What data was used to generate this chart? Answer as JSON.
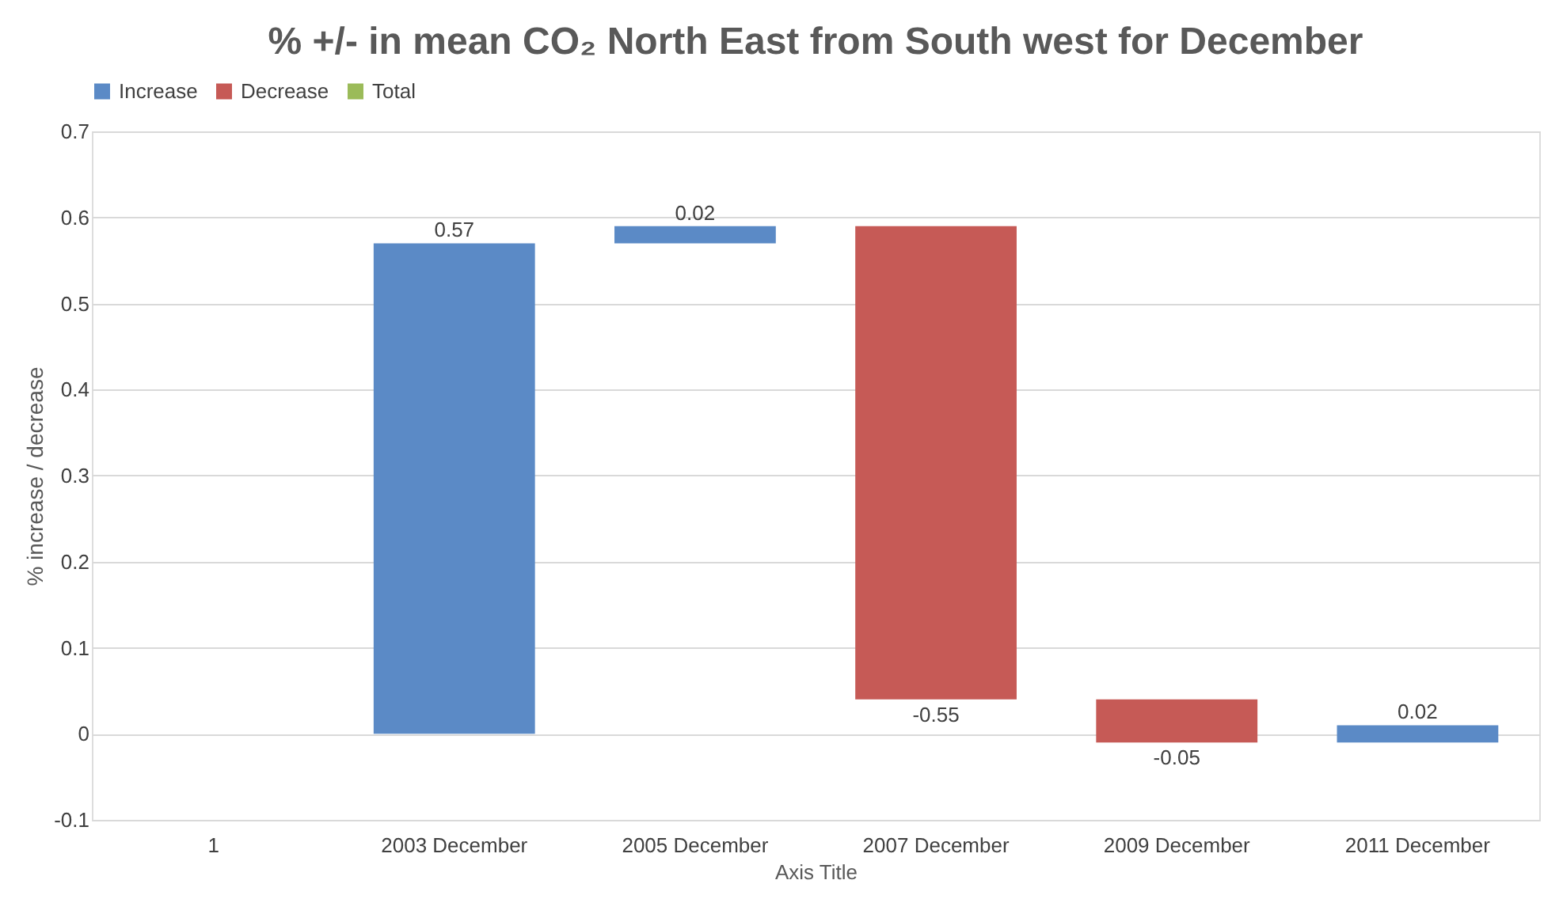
{
  "chart_data": {
    "type": "bar",
    "title": "% +/- in mean CO₂ North East from South west for December",
    "categories": [
      "1",
      "2003  December",
      "2005  December",
      "2007  December",
      "2009  December",
      "2011 December"
    ],
    "series": [
      {
        "name": "Increase",
        "color": "#5b8ac6",
        "values": [
          null,
          0.57,
          0.02,
          null,
          null,
          0.02
        ],
        "base": [
          null,
          0,
          0.57,
          null,
          null,
          -0.01
        ]
      },
      {
        "name": "Decrease",
        "color": "#c65a56",
        "values": [
          null,
          null,
          null,
          -0.55,
          -0.05,
          null
        ],
        "base": [
          null,
          null,
          null,
          0.59,
          0.04,
          null
        ]
      },
      {
        "name": "Total",
        "color": "#9bbb59",
        "values": [
          null,
          null,
          null,
          null,
          null,
          null
        ]
      }
    ],
    "xlabel": "Axis Title",
    "ylabel": "% increase / decrease",
    "ylim": [
      -0.1,
      0.7
    ],
    "yticks": [
      -0.1,
      0,
      0.1,
      0.2,
      0.3,
      0.4,
      0.5,
      0.6,
      0.7
    ],
    "grid": "y",
    "legend": "top",
    "data_labels": true
  }
}
